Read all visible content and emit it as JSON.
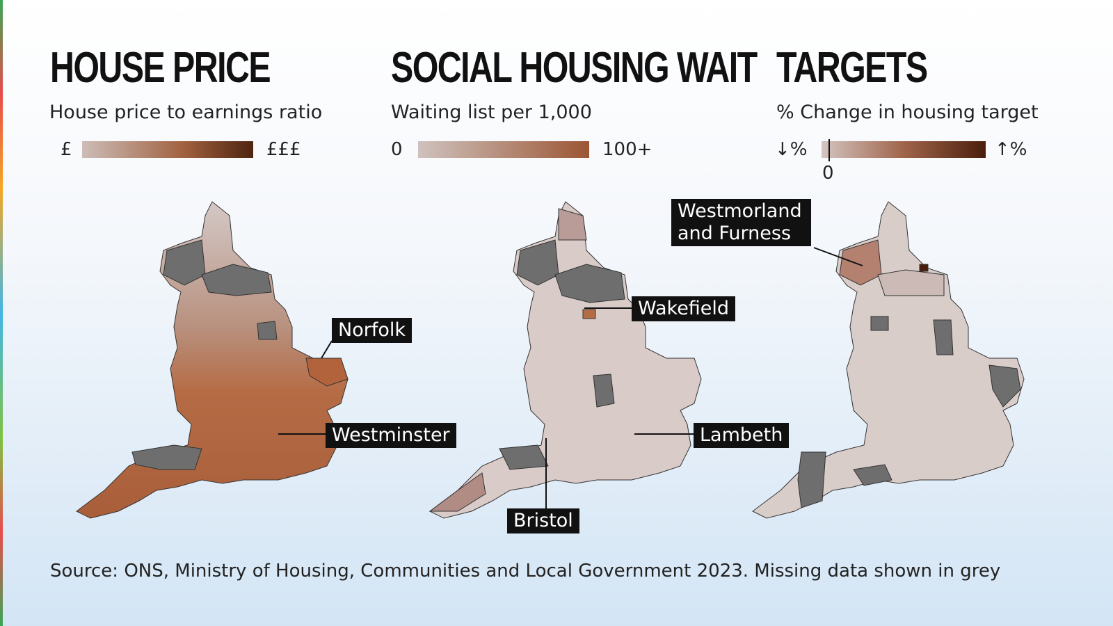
{
  "panels": [
    {
      "title": "HOUSE PRICE",
      "subtitle": "House price to earnings ratio",
      "legend": {
        "low": "£",
        "high": "£££"
      },
      "callouts": [
        "Norfolk",
        "Westminster"
      ]
    },
    {
      "title": "SOCIAL HOUSING WAIT",
      "subtitle": "Waiting list per 1,000",
      "legend": {
        "low": "0",
        "high": "100+"
      },
      "callouts": [
        "Wakefield",
        "Lambeth",
        "Bristol"
      ]
    },
    {
      "title": "TARGETS",
      "subtitle": "% Change in housing target",
      "legend": {
        "low": "↓%",
        "high": "↑%",
        "zero": "0"
      },
      "callouts": [
        "Westmorland and Furness"
      ]
    }
  ],
  "source": "Source: ONS, Ministry of Housing, Communities and Local Government 2023. Missing data shown in grey"
}
